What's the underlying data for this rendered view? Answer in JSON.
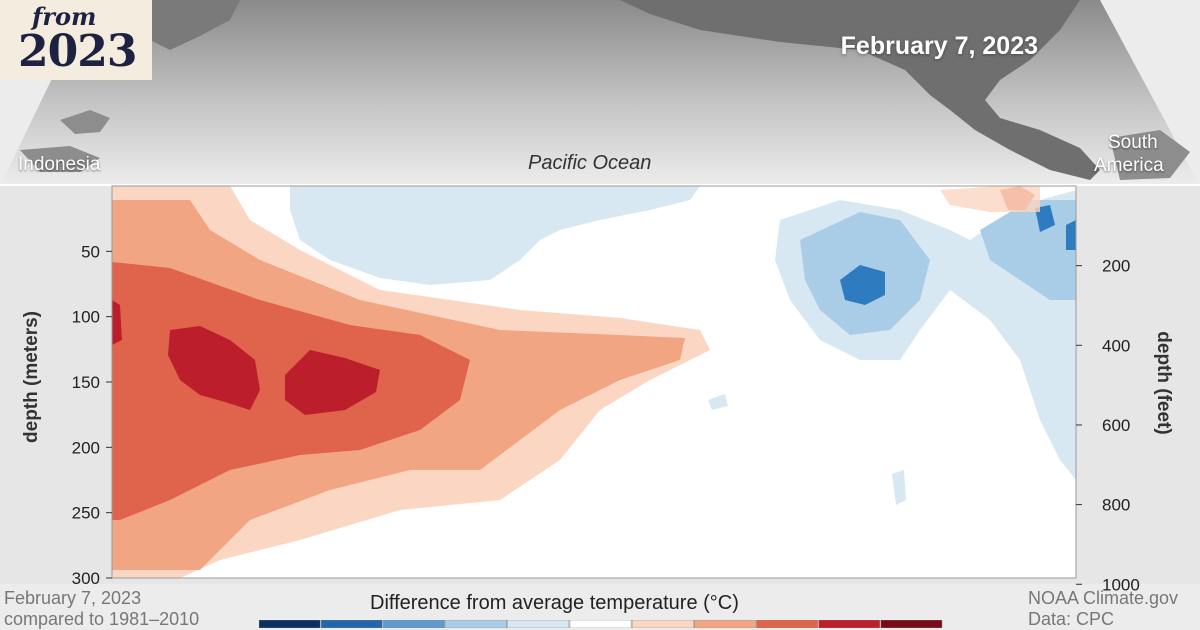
{
  "badge": {
    "top": "from",
    "year": "2023"
  },
  "map": {
    "date": "February 7, 2023",
    "labels": {
      "indonesia": "Indonesia",
      "pacific": "Pacific Ocean",
      "south": "South",
      "america": "America"
    }
  },
  "chart_data": {
    "type": "heatmap",
    "title": "Difference from average temperature (°C)",
    "left_axis": {
      "label": "depth (meters)",
      "ticks": [
        "50",
        "100",
        "150",
        "200",
        "250",
        "300"
      ],
      "range": [
        0,
        300
      ]
    },
    "right_axis": {
      "label": "depth (feet)",
      "ticks": [
        "200",
        "400",
        "600",
        "800",
        "1000"
      ]
    },
    "colorbar": {
      "colors": [
        "#0b2e63",
        "#2266ad",
        "#5f9bd0",
        "#a9cde6",
        "#d8e8f3",
        "#ffffff",
        "#fbd6c2",
        "#f2a582",
        "#e0634c",
        "#bc1e2c",
        "#7a0a18"
      ]
    },
    "notes": {
      "date": "February 7, 2023",
      "baseline": "compared to 1981–2010",
      "credit": "NOAA Climate.gov",
      "source": "Data: CPC"
    }
  }
}
